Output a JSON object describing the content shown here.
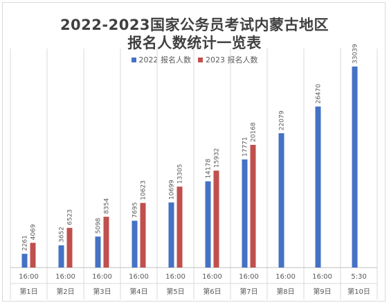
{
  "chart_data": {
    "type": "bar",
    "title": [
      "2022-2023国家公务员考试内蒙古地区",
      "报名人数统计一览表"
    ],
    "series": [
      {
        "name": "2022 报名人数",
        "color": "#4472C4",
        "values": [
          2261,
          3652,
          5098,
          7695,
          10699,
          14178,
          17771,
          22079,
          26470,
          33039
        ]
      },
      {
        "name": "2023 报名人数",
        "color": "#C0504D",
        "values": [
          4069,
          6523,
          8354,
          10623,
          13305,
          15932,
          20168,
          null,
          null,
          null
        ]
      }
    ],
    "categories": [
      {
        "time": "16:00",
        "day": "第1日"
      },
      {
        "time": "16:00",
        "day": "第2日"
      },
      {
        "time": "16:00",
        "day": "第3日"
      },
      {
        "time": "16:00",
        "day": "第4日"
      },
      {
        "time": "16:00",
        "day": "第5日"
      },
      {
        "time": "16:00",
        "day": "第6日"
      },
      {
        "time": "16:00",
        "day": "第7日"
      },
      {
        "time": "16:00",
        "day": "第8日"
      },
      {
        "time": "16:00",
        "day": "第9日"
      },
      {
        "time": "5:30",
        "day": "第10日"
      }
    ],
    "ylim": [
      0,
      36000
    ],
    "grid": "vertical-category-separators",
    "legend_position": "top"
  }
}
